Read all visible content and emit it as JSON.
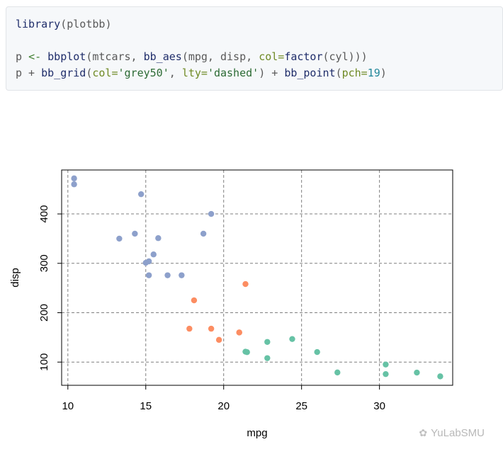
{
  "code": {
    "line1": {
      "fn": "library",
      "open": "(",
      "pkg": "plotbb",
      "close": ")"
    },
    "line2": {
      "var": "p",
      "assign": "<-",
      "fn1": "bbplot",
      "p1": "(mtcars, ",
      "fn2": "bb_aes",
      "p2": "(mpg, disp, ",
      "a1": "col=",
      "fn3": "factor",
      "p3": "(cyl)))"
    },
    "line3": {
      "var": "p",
      "plus1": " + ",
      "fn1": "bb_grid",
      "p1": "(",
      "a1": "col=",
      "s1": "'grey50'",
      "comma": ", ",
      "a2": "lty=",
      "s2": "'dashed'",
      "p2": ")",
      "plus2": " + ",
      "fn2": "bb_point",
      "p3": "(",
      "a3": "pch=",
      "n1": "19",
      "p4": ")"
    }
  },
  "chart_data": {
    "type": "scatter",
    "xlabel": "mpg",
    "ylabel": "disp",
    "xlim": [
      9.6,
      34.7
    ],
    "ylim": [
      53,
      489
    ],
    "xticks": [
      10,
      15,
      20,
      25,
      30
    ],
    "yticks": [
      100,
      200,
      300,
      400
    ],
    "grid": true,
    "grid_color": "#7f7f7f",
    "grid_style": "dashed",
    "series": [
      {
        "color": "#66c2a5",
        "points": [
          [
            22.8,
            108
          ],
          [
            24.4,
            146.7
          ],
          [
            22.8,
            140.8
          ],
          [
            32.4,
            78.7
          ],
          [
            30.4,
            75.7
          ],
          [
            33.9,
            71.1
          ],
          [
            21.5,
            120.1
          ],
          [
            27.3,
            79
          ],
          [
            26,
            120.3
          ],
          [
            30.4,
            95.1
          ],
          [
            21.4,
            121
          ]
        ]
      },
      {
        "color": "#fc8d62",
        "points": [
          [
            21,
            160
          ],
          [
            21,
            160
          ],
          [
            21.4,
            258
          ],
          [
            18.1,
            225
          ],
          [
            19.2,
            167.6
          ],
          [
            17.8,
            167.6
          ],
          [
            19.7,
            145
          ]
        ]
      },
      {
        "color": "#8da0cb",
        "points": [
          [
            18.7,
            360
          ],
          [
            14.3,
            360
          ],
          [
            16.4,
            275.8
          ],
          [
            17.3,
            275.8
          ],
          [
            15.2,
            275.8
          ],
          [
            10.4,
            472
          ],
          [
            10.4,
            460
          ],
          [
            14.7,
            440
          ],
          [
            15.5,
            318
          ],
          [
            15.2,
            304
          ],
          [
            13.3,
            350
          ],
          [
            19.2,
            400
          ],
          [
            15.8,
            351
          ],
          [
            15,
            301
          ]
        ]
      }
    ]
  },
  "watermark": {
    "text": "YuLabSMU"
  },
  "icons": {
    "watermark": "wechat-icon"
  }
}
